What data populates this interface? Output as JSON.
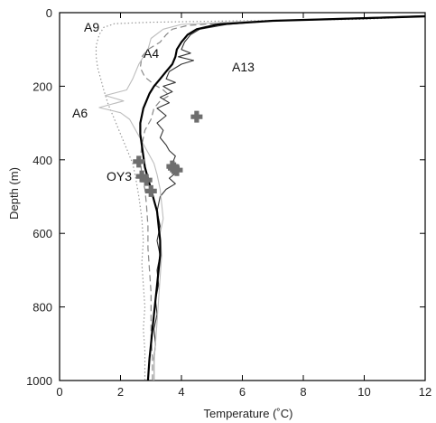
{
  "chart_data": {
    "type": "line",
    "xlabel": "Temperature (˚C)",
    "ylabel": "Depth (m)",
    "xlim": [
      0,
      12
    ],
    "ylim": [
      0,
      1000
    ],
    "y_inverted": true,
    "x_ticks": [
      0,
      2,
      4,
      6,
      8,
      10,
      12
    ],
    "y_ticks": [
      0,
      200,
      400,
      600,
      800,
      1000
    ],
    "grid": false,
    "legend": "none",
    "series": [
      {
        "name": "A9",
        "style": "dotted",
        "color": "#9a9a9a",
        "points": [
          [
            12,
            10
          ],
          [
            10,
            18
          ],
          [
            6,
            22
          ],
          [
            3,
            26
          ],
          [
            1.8,
            30
          ],
          [
            1.45,
            40
          ],
          [
            1.3,
            60
          ],
          [
            1.2,
            90
          ],
          [
            1.2,
            120
          ],
          [
            1.25,
            150
          ],
          [
            1.35,
            180
          ],
          [
            1.45,
            210
          ],
          [
            1.6,
            250
          ],
          [
            1.8,
            290
          ],
          [
            2.0,
            330
          ],
          [
            2.2,
            370
          ],
          [
            2.4,
            410
          ],
          [
            2.5,
            450
          ],
          [
            2.6,
            500
          ],
          [
            2.7,
            560
          ],
          [
            2.75,
            620
          ],
          [
            2.7,
            680
          ],
          [
            2.75,
            740
          ],
          [
            2.8,
            800
          ],
          [
            2.75,
            860
          ],
          [
            2.8,
            920
          ],
          [
            2.8,
            1000
          ]
        ]
      },
      {
        "name": "A4",
        "style": "dashed",
        "color": "#888888",
        "points": [
          [
            11,
            12
          ],
          [
            9,
            18
          ],
          [
            6,
            25
          ],
          [
            4.2,
            35
          ],
          [
            3.7,
            45
          ],
          [
            3.5,
            60
          ],
          [
            3.3,
            80
          ],
          [
            2.9,
            100
          ],
          [
            2.7,
            120
          ],
          [
            2.65,
            150
          ],
          [
            2.8,
            175
          ],
          [
            3.1,
            195
          ],
          [
            3.4,
            210
          ],
          [
            3.6,
            225
          ],
          [
            3.3,
            240
          ],
          [
            3.1,
            260
          ],
          [
            3.0,
            290
          ],
          [
            2.8,
            320
          ],
          [
            2.7,
            360
          ],
          [
            2.65,
            400
          ],
          [
            2.7,
            440
          ],
          [
            2.8,
            480
          ],
          [
            2.85,
            520
          ],
          [
            2.9,
            580
          ],
          [
            2.9,
            640
          ],
          [
            2.95,
            700
          ],
          [
            3.0,
            760
          ],
          [
            3.0,
            820
          ],
          [
            3.0,
            880
          ],
          [
            3.05,
            940
          ],
          [
            3.05,
            1000
          ]
        ]
      },
      {
        "name": "A13",
        "style": "solid-thin",
        "color": "#333333",
        "points": [
          [
            12,
            8
          ],
          [
            10,
            14
          ],
          [
            7,
            22
          ],
          [
            5.5,
            32
          ],
          [
            4.6,
            45
          ],
          [
            4.3,
            60
          ],
          [
            4.1,
            80
          ],
          [
            4.0,
            100
          ],
          [
            4.3,
            110
          ],
          [
            3.9,
            120
          ],
          [
            4.4,
            130
          ],
          [
            4.0,
            140
          ],
          [
            3.6,
            160
          ],
          [
            3.5,
            180
          ],
          [
            3.8,
            190
          ],
          [
            3.4,
            200
          ],
          [
            3.7,
            215
          ],
          [
            3.3,
            230
          ],
          [
            3.6,
            245
          ],
          [
            3.2,
            260
          ],
          [
            3.5,
            280
          ],
          [
            3.2,
            300
          ],
          [
            3.4,
            320
          ],
          [
            3.3,
            340
          ],
          [
            3.5,
            360
          ],
          [
            3.6,
            375
          ],
          [
            3.8,
            390
          ],
          [
            3.7,
            410
          ],
          [
            3.9,
            430
          ],
          [
            3.6,
            450
          ],
          [
            3.8,
            465
          ],
          [
            3.5,
            480
          ],
          [
            3.3,
            500
          ],
          [
            3.2,
            540
          ],
          [
            3.3,
            580
          ],
          [
            3.2,
            620
          ],
          [
            3.3,
            660
          ],
          [
            3.2,
            700
          ],
          [
            3.25,
            740
          ],
          [
            3.15,
            780
          ],
          [
            3.2,
            820
          ],
          [
            3.1,
            860
          ],
          [
            3.15,
            900
          ],
          [
            3.1,
            940
          ],
          [
            3.1,
            1000
          ]
        ]
      },
      {
        "name": "A6",
        "style": "solid-light",
        "color": "#bdbdbd",
        "points": [
          [
            12,
            10
          ],
          [
            9,
            16
          ],
          [
            6,
            24
          ],
          [
            4,
            32
          ],
          [
            3.4,
            45
          ],
          [
            3.0,
            70
          ],
          [
            2.9,
            100
          ],
          [
            2.6,
            140
          ],
          [
            2.4,
            180
          ],
          [
            2.2,
            210
          ],
          [
            1.5,
            225
          ],
          [
            2.1,
            240
          ],
          [
            1.3,
            258
          ],
          [
            2.0,
            272
          ],
          [
            2.3,
            290
          ],
          [
            2.5,
            320
          ],
          [
            2.7,
            350
          ],
          [
            2.9,
            380
          ],
          [
            3.1,
            410
          ],
          [
            3.2,
            440
          ],
          [
            3.3,
            480
          ],
          [
            3.35,
            520
          ],
          [
            3.4,
            560
          ],
          [
            3.3,
            600
          ],
          [
            3.35,
            660
          ],
          [
            3.3,
            720
          ],
          [
            3.25,
            780
          ],
          [
            3.2,
            840
          ],
          [
            3.15,
            900
          ],
          [
            3.1,
            950
          ],
          [
            3.1,
            1000
          ]
        ]
      },
      {
        "name": "",
        "style": "solid-thick",
        "color": "#000000",
        "points": [
          [
            12,
            10
          ],
          [
            10,
            15
          ],
          [
            7,
            22
          ],
          [
            5.2,
            32
          ],
          [
            4.5,
            45
          ],
          [
            4.2,
            60
          ],
          [
            4.0,
            80
          ],
          [
            3.85,
            100
          ],
          [
            3.8,
            120
          ],
          [
            3.7,
            140
          ],
          [
            3.5,
            160
          ],
          [
            3.3,
            180
          ],
          [
            3.1,
            200
          ],
          [
            2.95,
            220
          ],
          [
            2.85,
            240
          ],
          [
            2.75,
            260
          ],
          [
            2.7,
            280
          ],
          [
            2.65,
            300
          ],
          [
            2.65,
            330
          ],
          [
            2.7,
            360
          ],
          [
            2.75,
            390
          ],
          [
            2.8,
            420
          ],
          [
            2.9,
            450
          ],
          [
            3.0,
            480
          ],
          [
            3.1,
            510
          ],
          [
            3.2,
            540
          ],
          [
            3.25,
            580
          ],
          [
            3.3,
            620
          ],
          [
            3.3,
            660
          ],
          [
            3.25,
            700
          ],
          [
            3.2,
            740
          ],
          [
            3.15,
            780
          ],
          [
            3.1,
            820
          ],
          [
            3.05,
            860
          ],
          [
            3.0,
            900
          ],
          [
            2.95,
            940
          ],
          [
            2.9,
            1000
          ]
        ]
      }
    ],
    "markers": {
      "name": "OY3",
      "color": "#6e6e6e",
      "points": [
        [
          4.5,
          283
        ],
        [
          2.6,
          405
        ],
        [
          2.7,
          445
        ],
        [
          2.85,
          455
        ],
        [
          3.0,
          485
        ],
        [
          3.7,
          418
        ],
        [
          3.85,
          428
        ],
        [
          3.75,
          423
        ]
      ]
    },
    "labels": {
      "A9": "A9",
      "A4": "A4",
      "A13": "A13",
      "A6": "A6",
      "OY3": "OY3"
    }
  }
}
